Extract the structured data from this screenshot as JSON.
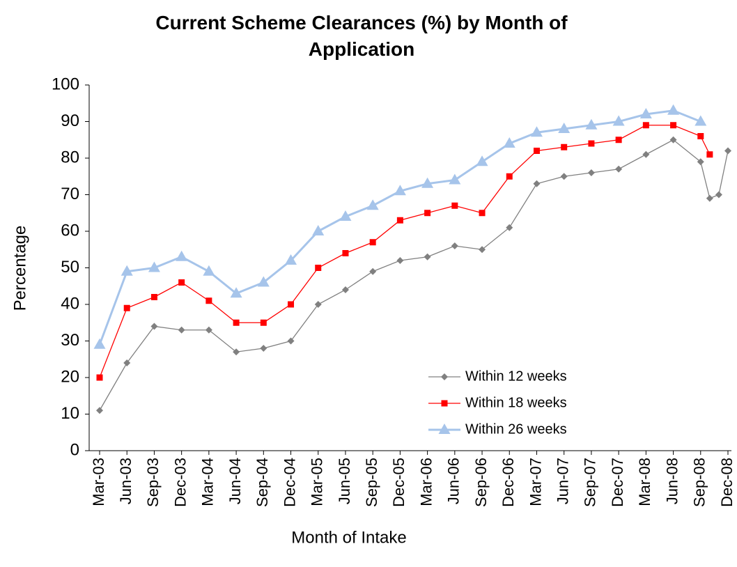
{
  "chart_data": {
    "type": "line",
    "title": "Current Scheme Clearances (%) by Month of Application",
    "x_label": "Month of Intake",
    "y_label": "Percentage",
    "x": [
      "Mar-03",
      "Jun-03",
      "Sep-03",
      "Dec-03",
      "Mar-04",
      "Jun-04",
      "Sep-04",
      "Dec-04",
      "Mar-05",
      "Jun-05",
      "Sep-05",
      "Dec-05",
      "Mar-06",
      "Jun-06",
      "Sep-06",
      "Dec-06",
      "Mar-07",
      "Jun-07",
      "Sep-07",
      "Dec-07",
      "Mar-08",
      "Jun-08",
      "Sep-08",
      "Oct-08",
      "Nov-08",
      "Dec-08"
    ],
    "xlim": [
      "Mar-03",
      "Dec-08"
    ],
    "xticks": [
      "Mar-03",
      "Jun-03",
      "Sep-03",
      "Dec-03",
      "Mar-04",
      "Jun-04",
      "Sep-04",
      "Dec-04",
      "Mar-05",
      "Jun-05",
      "Sep-05",
      "Dec-05",
      "Mar-06",
      "Jun-06",
      "Sep-06",
      "Dec-06",
      "Mar-07",
      "Jun-07",
      "Sep-07",
      "Dec-07",
      "Mar-08",
      "Jun-08",
      "Sep-08",
      "Dec-08"
    ],
    "ylim": [
      0,
      100
    ],
    "yticks": [
      0,
      10,
      20,
      30,
      40,
      50,
      60,
      70,
      80,
      90,
      100
    ],
    "grid": false,
    "legend": "lower right",
    "series": [
      {
        "name": "Within 12 weeks",
        "color": "#808080",
        "marker": "diamond",
        "values": [
          11,
          24,
          34,
          33,
          33,
          27,
          28,
          30,
          40,
          44,
          49,
          52,
          53,
          56,
          55,
          61,
          73,
          75,
          76,
          77,
          81,
          85,
          79,
          69,
          70,
          82
        ]
      },
      {
        "name": "Within 18 weeks",
        "color": "#ff0000",
        "marker": "square",
        "values": [
          20,
          39,
          42,
          46,
          41,
          35,
          35,
          40,
          50,
          54,
          57,
          63,
          65,
          67,
          65,
          75,
          82,
          83,
          84,
          85,
          89,
          89,
          86,
          81,
          null,
          null
        ]
      },
      {
        "name": "Within 26 weeks",
        "color": "#a6c4ea",
        "marker": "triangle",
        "values": [
          29,
          49,
          50,
          53,
          49,
          43,
          46,
          52,
          60,
          64,
          67,
          71,
          73,
          74,
          79,
          84,
          87,
          88,
          89,
          90,
          92,
          93,
          90,
          null,
          null,
          null
        ]
      }
    ]
  }
}
